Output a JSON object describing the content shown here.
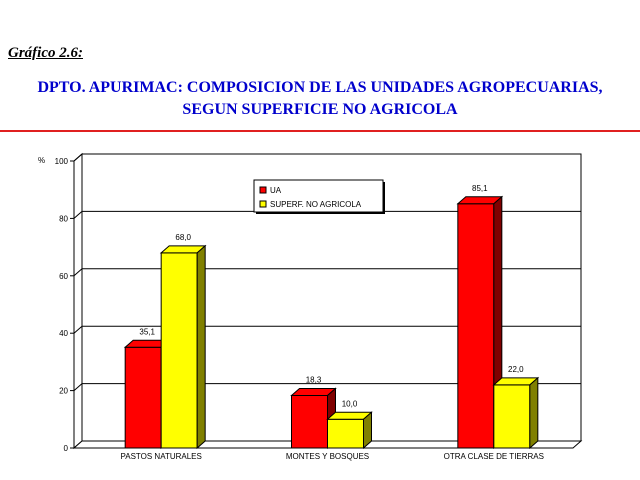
{
  "header": {
    "label": "Gráfico 2.6:",
    "title_line1": "DPTO. APURIMAC: COMPOSICION DE LAS UNIDADES AGROPECUARIAS,",
    "title_line2": "SEGUN SUPERFICIE NO AGRICOLA"
  },
  "chart_data": {
    "type": "bar",
    "title": "DPTO. APURIMAC: COMPOSICION DE LAS UNIDADES AGROPECUARIAS, SEGUN SUPERFICIE NO AGRICOLA",
    "ylabel": "%",
    "xlabel": "",
    "ylim": [
      0,
      100
    ],
    "yticks": [
      0,
      20,
      40,
      60,
      80,
      100
    ],
    "grid": true,
    "legend_position": "top-center",
    "categories": [
      "PASTOS NATURALES",
      "MONTES Y BOSQUES",
      "OTRA CLASE DE TIERRAS"
    ],
    "series": [
      {
        "name": "UA",
        "values": [
          35.1,
          18.3,
          85.1
        ],
        "labels": [
          "35,1",
          "18,3",
          "85,1"
        ],
        "color": "#ff0000",
        "side_color": "#800000"
      },
      {
        "name": "SUPERF. NO AGRICOLA",
        "values": [
          68.0,
          10.0,
          22.0
        ],
        "labels": [
          "68,0",
          "10,0",
          "22,0"
        ],
        "color": "#ffff00",
        "side_color": "#808000"
      }
    ]
  }
}
